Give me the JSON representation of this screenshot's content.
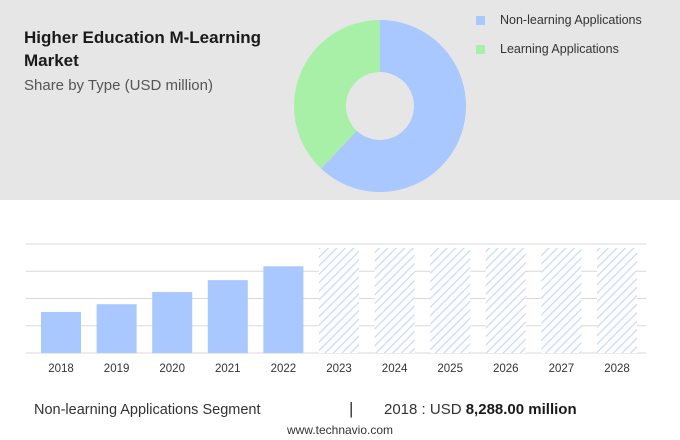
{
  "header": {
    "title": "Higher Education M-Learning Market",
    "subtitle": "Share by Type (USD million)"
  },
  "colors": {
    "non_learning": "#a9c8ff",
    "learning": "#a8f0a8",
    "grid": "#d9d9d9",
    "forecast_hatch": "#c9d9f5"
  },
  "chart_data": [
    {
      "type": "pie",
      "subtype": "donut",
      "slices": [
        {
          "name": "Non-learning Applications",
          "share": 0.62,
          "color": "#a9c8ff"
        },
        {
          "name": "Learning Applications",
          "share": 0.38,
          "color": "#a8f0a8"
        }
      ],
      "legend": {
        "position": "right",
        "items": [
          "Non-learning Applications",
          "Learning Applications"
        ]
      }
    },
    {
      "type": "bar",
      "categories": [
        "2018",
        "2019",
        "2020",
        "2021",
        "2022",
        "2023",
        "2024",
        "2025",
        "2026",
        "2027",
        "2028"
      ],
      "values": [
        8288,
        9850,
        12300,
        14700,
        17500,
        21200,
        21200,
        21200,
        21200,
        21200,
        21200
      ],
      "forecast_from": "2023",
      "ylim": [
        0,
        22000
      ],
      "grid": true
    }
  ],
  "footer": {
    "segment_label": "Non-learning Applications Segment",
    "separator": "|",
    "year_label": "2018 : USD ",
    "value_label": "8,288.00 million",
    "source": "www.technavio.com"
  }
}
